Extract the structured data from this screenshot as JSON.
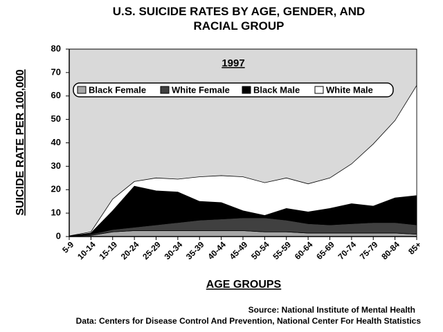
{
  "chart_data": {
    "type": "stacked_area",
    "title": "U.S. SUICIDE RATES BY AGE, GENDER, AND RACIAL GROUP",
    "annotation": "1997",
    "x_label": "AGE GROUPS",
    "y_label": "SUICIDE RATE PER 100,000",
    "source": "Source: National Institute of Mental Health",
    "data_note": "Data: Centers for Disease Control And Prevention, National Center For Health Statistics",
    "categories": [
      "5-9",
      "10-14",
      "15-19",
      "20-24",
      "25-29",
      "30-34",
      "35-39",
      "40-44",
      "45-49",
      "50-54",
      "55-59",
      "60-64",
      "65-69",
      "70-74",
      "75-79",
      "80-84",
      "85+"
    ],
    "series": [
      {
        "name": "Black Female",
        "color": "#a6a6a6",
        "values": [
          0.1,
          0.5,
          2,
          2.5,
          2.5,
          2.5,
          2.5,
          2.5,
          2.5,
          2,
          2,
          1.5,
          1.5,
          1.5,
          1.5,
          1.5,
          1
        ]
      },
      {
        "name": "White Female",
        "color": "#404040",
        "values": [
          0,
          0.5,
          1,
          1.5,
          2.5,
          3.5,
          4.5,
          5,
          5.5,
          6,
          5,
          4,
          3.5,
          4,
          4.5,
          4.5,
          4
        ]
      },
      {
        "name": "Black Male",
        "color": "#000000",
        "values": [
          0.1,
          0.5,
          8,
          17.5,
          14.5,
          13,
          8,
          7,
          3,
          1,
          5,
          5,
          7,
          8.5,
          7,
          10.5,
          12.5
        ]
      },
      {
        "name": "White Male",
        "color": "#ffffff",
        "values": [
          0.1,
          0.5,
          5,
          2,
          5.5,
          5.5,
          10.5,
          11.5,
          14.5,
          14,
          13,
          12,
          13,
          17,
          26.5,
          33,
          47
        ]
      }
    ],
    "ylim": [
      0,
      80
    ],
    "yticks": [
      0,
      10,
      20,
      30,
      40,
      50,
      60,
      70,
      80
    ],
    "plot_background": "#d9d9d9"
  }
}
